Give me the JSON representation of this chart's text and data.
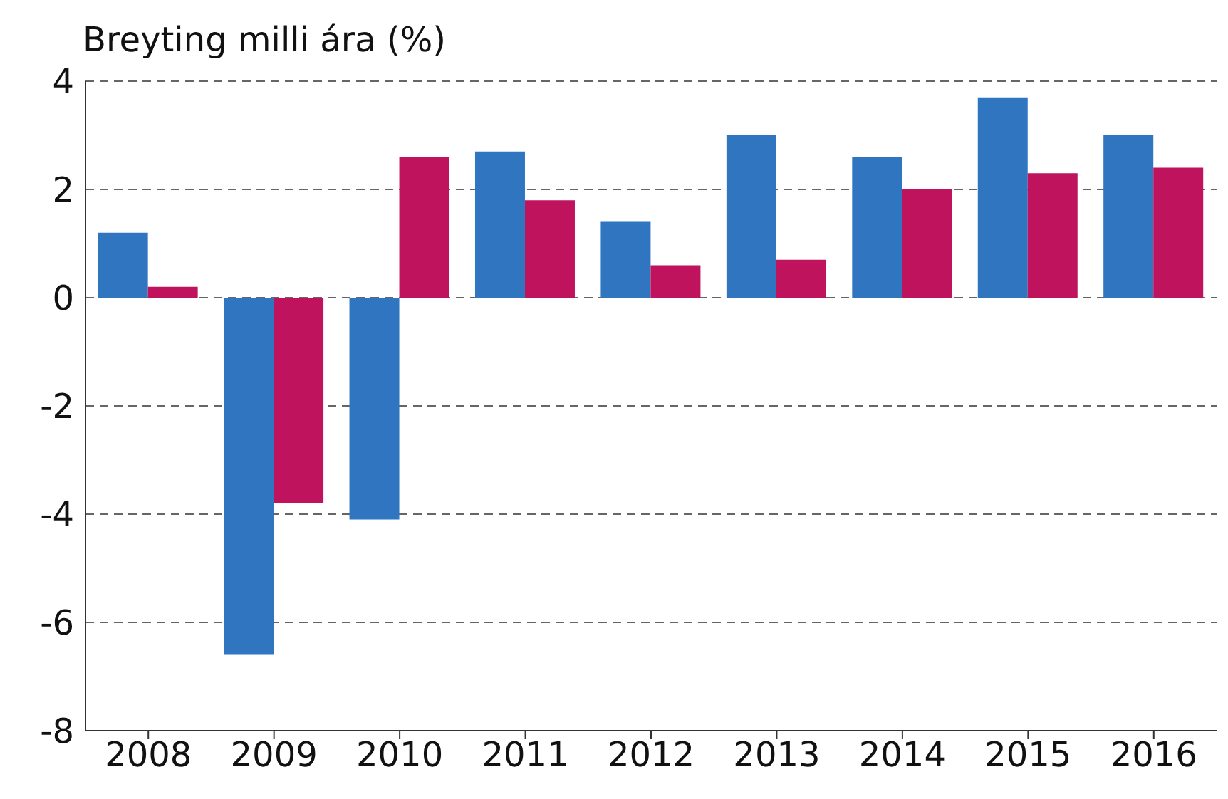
{
  "chart_data": {
    "type": "bar",
    "ylabel": "Breyting milli ára (%)",
    "categories": [
      "2008",
      "2009",
      "2010",
      "2011",
      "2012",
      "2013",
      "2014",
      "2015",
      "2016"
    ],
    "series": [
      {
        "color": "#2f75c0",
        "values": [
          1.2,
          -6.6,
          -4.1,
          2.7,
          1.4,
          3.0,
          2.6,
          3.7,
          3.0
        ]
      },
      {
        "color": "#c0135e",
        "values": [
          0.2,
          -3.8,
          2.6,
          1.8,
          0.6,
          0.7,
          2.0,
          2.3,
          2.4
        ]
      }
    ],
    "ylim": [
      -8,
      4
    ],
    "yticks": [
      -8,
      -6,
      -4,
      -2,
      0,
      2,
      4
    ],
    "grid": "y",
    "legend": false
  }
}
